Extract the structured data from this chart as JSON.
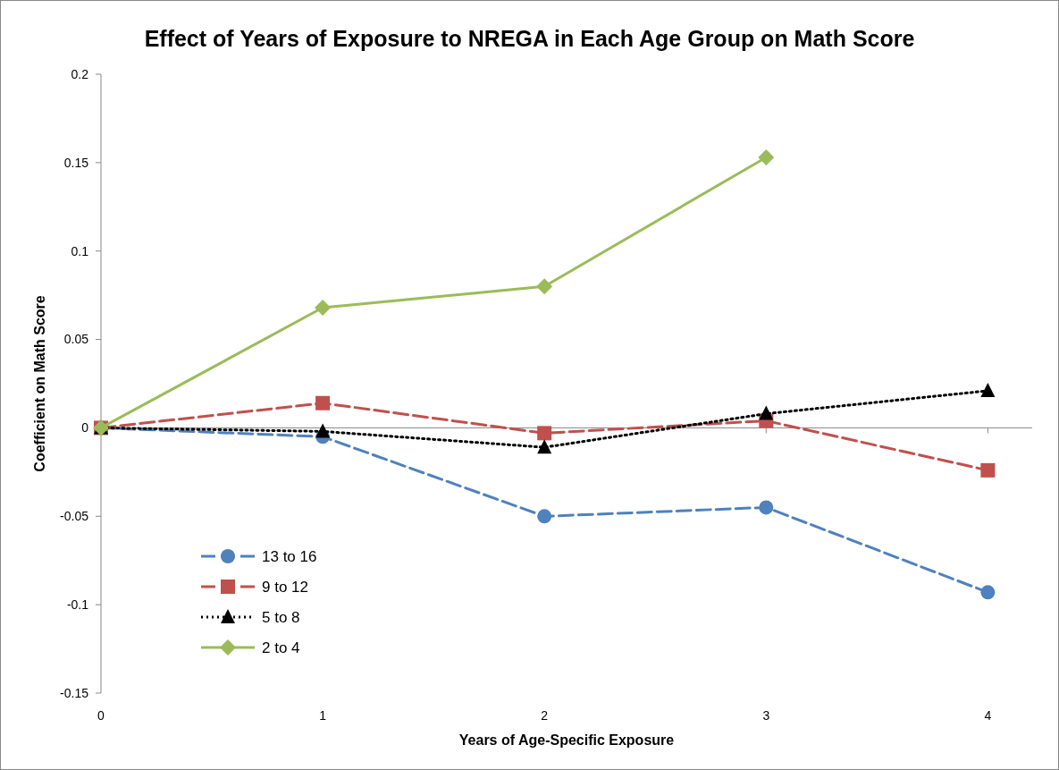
{
  "chart_data": {
    "type": "line",
    "title": "Effect of Years of Exposure to NREGA in Each Age Group on Math Score",
    "xlabel": "Years of Age-Specific Exposure",
    "ylabel": "Coefficient on Math Score",
    "x": [
      0,
      1,
      2,
      3,
      4
    ],
    "xlim": [
      0,
      4.2
    ],
    "xticks": [
      0,
      1,
      2,
      3,
      4
    ],
    "ylim": [
      -0.15,
      0.2
    ],
    "yticks": [
      -0.15,
      -0.1,
      -0.05,
      0,
      0.05,
      0.1,
      0.15,
      0.2
    ],
    "legend": "bottom left",
    "series": [
      {
        "name": "13 to 16",
        "color": "#4f81bd",
        "marker": "circle",
        "line_style": "dashed",
        "values": [
          0,
          -0.005,
          -0.05,
          -0.045,
          -0.093
        ]
      },
      {
        "name": "9 to 12",
        "color": "#c0504d",
        "marker": "square",
        "line_style": "dashed",
        "values": [
          0,
          0.014,
          -0.003,
          0.004,
          -0.024
        ]
      },
      {
        "name": "5 to 8",
        "color": "#000000",
        "marker": "triangle",
        "line_style": "dotted",
        "values": [
          0,
          -0.002,
          -0.011,
          0.008,
          0.021
        ]
      },
      {
        "name": "2 to 4",
        "color": "#9bbb59",
        "marker": "diamond",
        "line_style": "solid",
        "values": [
          0,
          0.068,
          0.08,
          0.153,
          null
        ]
      }
    ]
  }
}
